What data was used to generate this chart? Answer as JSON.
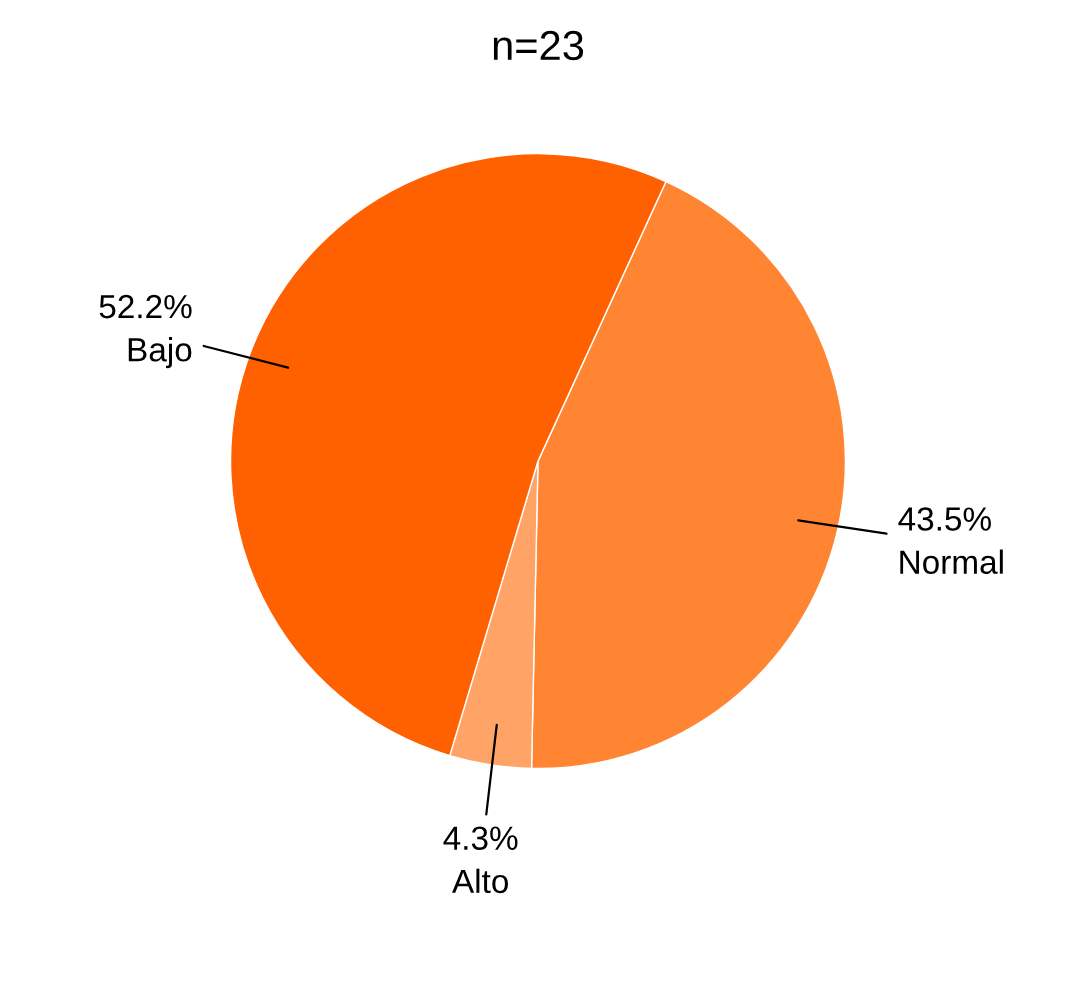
{
  "chart_data": {
    "type": "pie",
    "title": "n=23",
    "categories": [
      "Normal",
      "Alto",
      "Bajo"
    ],
    "values": [
      43.5,
      4.3,
      52.2
    ],
    "value_labels": [
      "43.5%",
      "4.3%",
      "52.2%"
    ],
    "colors": [
      "#ff8533",
      "#ffa366",
      "#ff6000"
    ],
    "legend": false
  }
}
